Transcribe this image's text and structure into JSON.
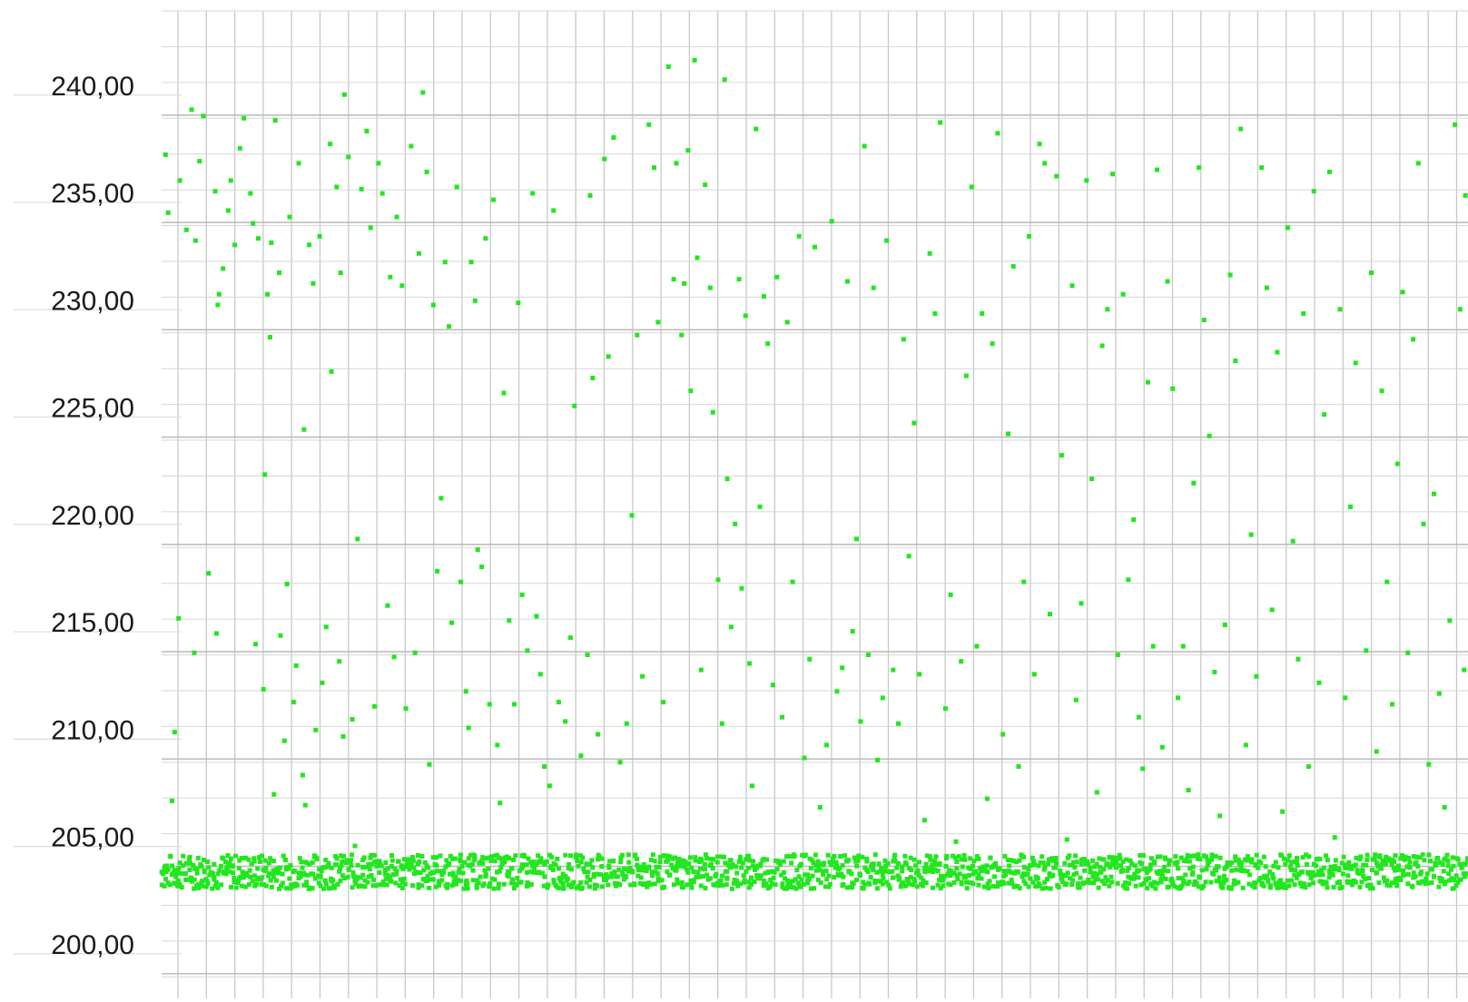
{
  "chart_data": {
    "type": "scatter",
    "title": "",
    "xlabel": "",
    "ylabel": "",
    "ylim": [
      197.5,
      243.5
    ],
    "xlim": [
      0,
      100
    ],
    "grid": true,
    "legend": "none",
    "colors": {
      "points": "#22e61e",
      "grid": "#c8c8c8",
      "text": "#1a1a1a"
    },
    "y_ticks": [
      {
        "value": 240,
        "label": "240,00"
      },
      {
        "value": 235,
        "label": "235,00"
      },
      {
        "value": 230,
        "label": "230,00"
      },
      {
        "value": 225,
        "label": "225,00"
      },
      {
        "value": 220,
        "label": "220,00"
      },
      {
        "value": 215,
        "label": "215,00"
      },
      {
        "value": 210,
        "label": "210,00"
      },
      {
        "value": 205,
        "label": "205,00"
      },
      {
        "value": 200,
        "label": "200,00"
      }
    ],
    "baseline_band": {
      "y_low": 202.6,
      "y_high": 204.2,
      "x_start": 0,
      "x_end": 100
    },
    "series": [
      {
        "points": [
          [
            0.3,
            236.8
          ],
          [
            0.5,
            234.1
          ],
          [
            1.0,
            209.9
          ],
          [
            0.8,
            206.7
          ],
          [
            1.3,
            215.2
          ],
          [
            1.4,
            235.6
          ],
          [
            1.9,
            233.3
          ],
          [
            2.3,
            238.9
          ],
          [
            2.5,
            213.6
          ],
          [
            2.6,
            232.8
          ],
          [
            2.9,
            236.5
          ],
          [
            3.2,
            238.6
          ],
          [
            3.6,
            217.3
          ],
          [
            4.1,
            235.1
          ],
          [
            4.2,
            214.5
          ],
          [
            4.3,
            229.8
          ],
          [
            4.4,
            230.3
          ],
          [
            4.7,
            231.5
          ],
          [
            5.1,
            234.2
          ],
          [
            5.3,
            235.6
          ],
          [
            5.6,
            232.6
          ],
          [
            6.0,
            237.1
          ],
          [
            6.3,
            238.5
          ],
          [
            6.8,
            235.0
          ],
          [
            7.0,
            233.6
          ],
          [
            7.2,
            214.0
          ],
          [
            7.4,
            232.9
          ],
          [
            7.8,
            211.9
          ],
          [
            7.9,
            221.9
          ],
          [
            8.1,
            230.3
          ],
          [
            8.3,
            228.3
          ],
          [
            8.4,
            232.7
          ],
          [
            8.6,
            207.0
          ],
          [
            8.7,
            238.4
          ],
          [
            9.0,
            231.3
          ],
          [
            9.1,
            214.4
          ],
          [
            9.4,
            209.5
          ],
          [
            9.6,
            216.8
          ],
          [
            9.8,
            233.9
          ],
          [
            10.1,
            211.3
          ],
          [
            10.3,
            213.0
          ],
          [
            10.5,
            236.4
          ],
          [
            10.8,
            207.9
          ],
          [
            10.9,
            224.0
          ],
          [
            11.0,
            206.5
          ],
          [
            11.3,
            232.6
          ],
          [
            11.6,
            230.8
          ],
          [
            11.8,
            210.0
          ],
          [
            12.1,
            233.0
          ],
          [
            12.3,
            212.2
          ],
          [
            12.6,
            214.8
          ],
          [
            12.9,
            237.3
          ],
          [
            13.0,
            226.7
          ],
          [
            13.4,
            235.3
          ],
          [
            13.6,
            213.2
          ],
          [
            13.7,
            231.3
          ],
          [
            13.9,
            209.7
          ],
          [
            14.0,
            239.6
          ],
          [
            14.3,
            236.7
          ],
          [
            14.6,
            210.5
          ],
          [
            14.8,
            204.6
          ],
          [
            15.0,
            218.9
          ],
          [
            15.3,
            235.2
          ],
          [
            15.7,
            237.9
          ],
          [
            16.0,
            233.4
          ],
          [
            16.3,
            211.1
          ],
          [
            16.6,
            236.4
          ],
          [
            16.9,
            235.0
          ],
          [
            17.3,
            215.8
          ],
          [
            17.5,
            231.1
          ],
          [
            17.8,
            213.4
          ],
          [
            18.0,
            233.9
          ],
          [
            18.4,
            230.7
          ],
          [
            18.7,
            211.0
          ],
          [
            19.1,
            237.2
          ],
          [
            19.4,
            213.6
          ],
          [
            19.7,
            232.2
          ],
          [
            20.0,
            239.7
          ],
          [
            20.3,
            236.0
          ],
          [
            20.5,
            208.4
          ],
          [
            20.8,
            229.8
          ],
          [
            21.1,
            217.4
          ],
          [
            21.4,
            220.8
          ],
          [
            21.7,
            231.8
          ],
          [
            22.0,
            228.8
          ],
          [
            22.2,
            215.0
          ],
          [
            22.6,
            235.3
          ],
          [
            22.9,
            216.9
          ],
          [
            23.3,
            211.8
          ],
          [
            23.5,
            210.1
          ],
          [
            23.7,
            231.8
          ],
          [
            24.0,
            230.0
          ],
          [
            24.2,
            218.4
          ],
          [
            24.5,
            217.6
          ],
          [
            24.8,
            232.9
          ],
          [
            25.1,
            211.2
          ],
          [
            25.4,
            234.7
          ],
          [
            25.7,
            209.3
          ],
          [
            25.9,
            206.6
          ],
          [
            26.2,
            225.7
          ],
          [
            26.6,
            215.1
          ],
          [
            27.0,
            211.2
          ],
          [
            27.3,
            229.9
          ],
          [
            27.6,
            216.3
          ],
          [
            28.0,
            213.7
          ],
          [
            28.4,
            235.0
          ],
          [
            28.7,
            215.3
          ],
          [
            29.0,
            212.6
          ],
          [
            29.3,
            208.3
          ],
          [
            29.7,
            207.4
          ],
          [
            30.0,
            234.2
          ],
          [
            30.4,
            211.3
          ],
          [
            30.9,
            210.4
          ],
          [
            31.3,
            214.3
          ],
          [
            31.6,
            225.1
          ],
          [
            32.1,
            208.8
          ],
          [
            32.6,
            213.5
          ],
          [
            32.8,
            234.9
          ],
          [
            33.0,
            226.4
          ],
          [
            33.4,
            209.8
          ],
          [
            33.9,
            236.6
          ],
          [
            34.2,
            227.4
          ],
          [
            34.6,
            237.6
          ],
          [
            35.1,
            208.5
          ],
          [
            35.6,
            210.3
          ],
          [
            36.0,
            220.0
          ],
          [
            36.4,
            228.4
          ],
          [
            36.8,
            212.5
          ],
          [
            37.3,
            238.2
          ],
          [
            37.7,
            236.2
          ],
          [
            38.0,
            229.0
          ],
          [
            38.4,
            211.3
          ],
          [
            38.8,
            240.9
          ],
          [
            39.2,
            231.0
          ],
          [
            39.4,
            236.4
          ],
          [
            39.8,
            228.4
          ],
          [
            40.0,
            230.8
          ],
          [
            40.3,
            237.0
          ],
          [
            40.5,
            225.8
          ],
          [
            40.8,
            241.2
          ],
          [
            41.0,
            232.0
          ],
          [
            41.3,
            212.8
          ],
          [
            41.6,
            235.4
          ],
          [
            42.0,
            230.6
          ],
          [
            42.2,
            224.8
          ],
          [
            42.6,
            217.0
          ],
          [
            42.9,
            210.3
          ],
          [
            43.1,
            240.3
          ],
          [
            43.3,
            221.7
          ],
          [
            43.6,
            214.8
          ],
          [
            43.9,
            219.6
          ],
          [
            44.2,
            231.0
          ],
          [
            44.4,
            216.6
          ],
          [
            44.7,
            229.3
          ],
          [
            45.0,
            213.1
          ],
          [
            45.2,
            207.4
          ],
          [
            45.5,
            238.0
          ],
          [
            45.8,
            220.4
          ],
          [
            46.1,
            230.2
          ],
          [
            46.4,
            228.0
          ],
          [
            46.8,
            212.1
          ],
          [
            47.1,
            231.1
          ],
          [
            47.5,
            210.6
          ],
          [
            47.9,
            229.0
          ],
          [
            48.3,
            216.9
          ],
          [
            48.8,
            233.0
          ],
          [
            49.2,
            208.7
          ],
          [
            49.6,
            213.3
          ],
          [
            50.0,
            232.5
          ],
          [
            50.4,
            206.4
          ],
          [
            50.9,
            209.3
          ],
          [
            51.3,
            233.7
          ],
          [
            51.7,
            211.8
          ],
          [
            52.1,
            212.9
          ],
          [
            52.5,
            230.9
          ],
          [
            52.9,
            214.6
          ],
          [
            53.2,
            218.9
          ],
          [
            53.5,
            210.4
          ],
          [
            53.8,
            237.2
          ],
          [
            54.1,
            213.5
          ],
          [
            54.5,
            230.6
          ],
          [
            54.8,
            208.6
          ],
          [
            55.2,
            211.5
          ],
          [
            55.5,
            232.8
          ],
          [
            56.0,
            212.8
          ],
          [
            56.4,
            210.3
          ],
          [
            56.8,
            228.2
          ],
          [
            57.2,
            218.1
          ],
          [
            57.6,
            224.3
          ],
          [
            58.0,
            212.6
          ],
          [
            58.4,
            205.8
          ],
          [
            58.8,
            232.2
          ],
          [
            59.2,
            229.4
          ],
          [
            59.6,
            238.3
          ],
          [
            60.0,
            211.0
          ],
          [
            60.4,
            216.3
          ],
          [
            60.8,
            204.8
          ],
          [
            61.2,
            213.2
          ],
          [
            61.6,
            226.5
          ],
          [
            62.0,
            235.3
          ],
          [
            62.4,
            213.9
          ],
          [
            62.8,
            229.4
          ],
          [
            63.2,
            206.8
          ],
          [
            63.6,
            228.0
          ],
          [
            64.0,
            237.8
          ],
          [
            64.4,
            209.8
          ],
          [
            64.8,
            223.8
          ],
          [
            65.2,
            231.6
          ],
          [
            65.6,
            208.3
          ],
          [
            66.0,
            216.9
          ],
          [
            66.4,
            233.0
          ],
          [
            66.8,
            212.6
          ],
          [
            67.2,
            237.3
          ],
          [
            67.6,
            236.4
          ],
          [
            68.0,
            215.4
          ],
          [
            68.5,
            235.8
          ],
          [
            68.9,
            222.8
          ],
          [
            69.3,
            204.9
          ],
          [
            69.7,
            230.7
          ],
          [
            70.0,
            211.4
          ],
          [
            70.4,
            215.9
          ],
          [
            70.8,
            235.6
          ],
          [
            71.2,
            221.7
          ],
          [
            71.6,
            207.1
          ],
          [
            72.0,
            227.9
          ],
          [
            72.4,
            229.6
          ],
          [
            72.8,
            235.9
          ],
          [
            73.2,
            213.5
          ],
          [
            73.6,
            230.3
          ],
          [
            74.0,
            217.0
          ],
          [
            74.4,
            219.8
          ],
          [
            74.8,
            210.6
          ],
          [
            75.1,
            208.2
          ],
          [
            75.5,
            226.2
          ],
          [
            75.9,
            213.9
          ],
          [
            76.2,
            236.1
          ],
          [
            76.6,
            209.2
          ],
          [
            77.0,
            230.9
          ],
          [
            77.4,
            225.9
          ],
          [
            77.8,
            211.5
          ],
          [
            78.2,
            213.9
          ],
          [
            78.6,
            207.2
          ],
          [
            79.0,
            221.5
          ],
          [
            79.4,
            236.2
          ],
          [
            79.8,
            229.1
          ],
          [
            80.2,
            223.7
          ],
          [
            80.6,
            212.7
          ],
          [
            81.0,
            206.0
          ],
          [
            81.4,
            214.9
          ],
          [
            81.8,
            231.2
          ],
          [
            82.2,
            227.2
          ],
          [
            82.6,
            238.0
          ],
          [
            83.0,
            209.3
          ],
          [
            83.4,
            219.1
          ],
          [
            83.8,
            212.5
          ],
          [
            84.2,
            236.2
          ],
          [
            84.6,
            230.6
          ],
          [
            85.0,
            215.6
          ],
          [
            85.4,
            227.6
          ],
          [
            85.8,
            206.2
          ],
          [
            86.2,
            233.4
          ],
          [
            86.6,
            218.8
          ],
          [
            87.0,
            213.3
          ],
          [
            87.4,
            229.4
          ],
          [
            87.8,
            208.3
          ],
          [
            88.2,
            235.1
          ],
          [
            88.6,
            212.2
          ],
          [
            89.0,
            224.7
          ],
          [
            89.4,
            236.0
          ],
          [
            89.8,
            205.0
          ],
          [
            90.2,
            229.6
          ],
          [
            90.6,
            211.5
          ],
          [
            91.0,
            220.4
          ],
          [
            91.4,
            227.1
          ],
          [
            91.8,
            204.1
          ],
          [
            92.2,
            213.7
          ],
          [
            92.6,
            231.3
          ],
          [
            93.0,
            209.0
          ],
          [
            93.4,
            225.8
          ],
          [
            93.8,
            216.9
          ],
          [
            94.2,
            211.2
          ],
          [
            94.6,
            222.4
          ],
          [
            95.0,
            230.4
          ],
          [
            95.4,
            213.6
          ],
          [
            95.8,
            228.2
          ],
          [
            96.2,
            236.4
          ],
          [
            96.6,
            219.6
          ],
          [
            97.0,
            208.4
          ],
          [
            97.4,
            221.0
          ],
          [
            97.8,
            211.7
          ],
          [
            98.2,
            206.4
          ],
          [
            98.6,
            215.1
          ],
          [
            99.0,
            238.2
          ],
          [
            99.4,
            229.6
          ],
          [
            99.7,
            212.8
          ],
          [
            99.8,
            234.9
          ]
        ]
      }
    ]
  }
}
